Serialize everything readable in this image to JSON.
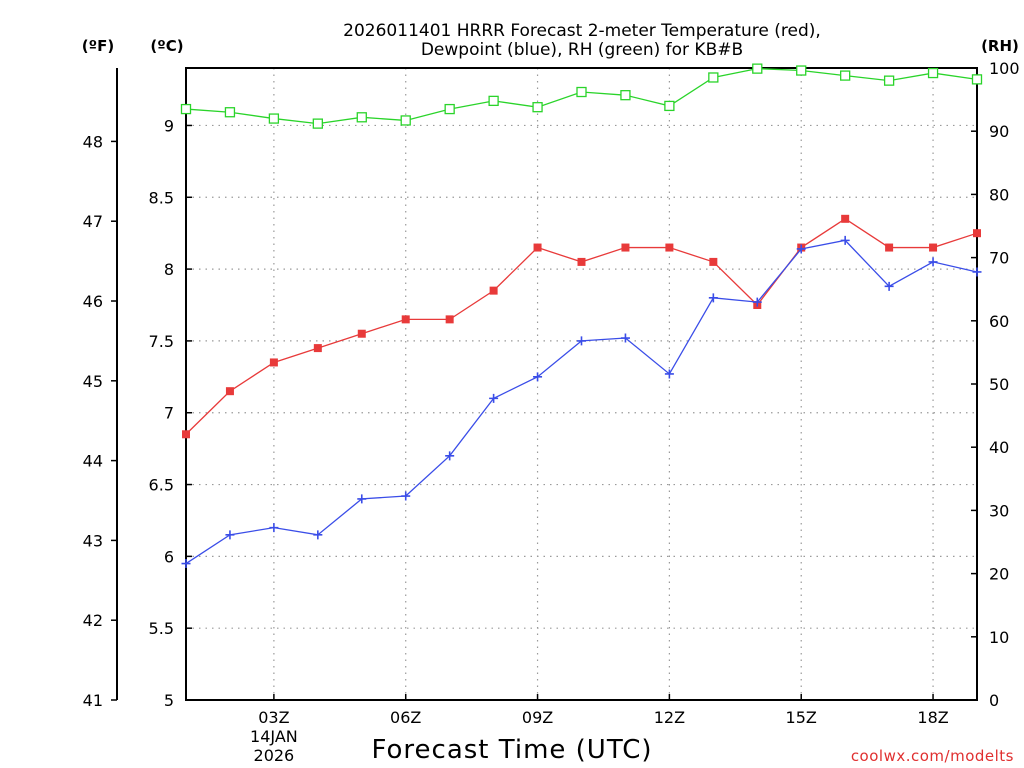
{
  "chart_data": {
    "type": "line",
    "title_line1": "2026011401 HRRR Forecast 2-meter Temperature (red),",
    "title_line2": "Dewpoint (blue), RH (green) for KB#B",
    "xlabel": "Forecast Time (UTC)",
    "credit": "coolwx.com/modelts",
    "units": {
      "fahrenheit": "(ºF)",
      "celsius": "(ºC)",
      "rh": "(RH)"
    },
    "x_hours": [
      1,
      2,
      3,
      4,
      5,
      6,
      7,
      8,
      9,
      10,
      11,
      12,
      13,
      14,
      15,
      16,
      17,
      18,
      19
    ],
    "x_ticks": [
      {
        "hour": 3,
        "label": "03Z",
        "sub1": "14JAN",
        "sub2": "2026"
      },
      {
        "hour": 6,
        "label": "06Z"
      },
      {
        "hour": 9,
        "label": "09Z"
      },
      {
        "hour": 12,
        "label": "12Z"
      },
      {
        "hour": 15,
        "label": "15Z"
      },
      {
        "hour": 18,
        "label": "18Z"
      }
    ],
    "xlim": [
      1,
      19
    ],
    "celsius_axis": {
      "ylim": [
        5,
        9.4
      ],
      "ticks": [
        "5",
        "5.5",
        "6",
        "6.5",
        "7",
        "7.5",
        "8",
        "8.5",
        "9"
      ]
    },
    "fahrenheit_axis": {
      "ylim": [
        41,
        48.92
      ],
      "ticks": [
        "41",
        "42",
        "43",
        "44",
        "45",
        "46",
        "47",
        "48"
      ]
    },
    "rh_axis": {
      "ylim": [
        0,
        100
      ],
      "ticks": [
        "0",
        "10",
        "20",
        "30",
        "40",
        "50",
        "60",
        "70",
        "80",
        "90",
        "100"
      ]
    },
    "series": [
      {
        "name": "Temperature",
        "axis": "celsius",
        "color": "#e83a3a",
        "marker": "filled-square",
        "values": [
          6.85,
          7.15,
          7.35,
          7.45,
          7.55,
          7.65,
          7.65,
          7.85,
          8.15,
          8.05,
          8.15,
          8.15,
          8.05,
          7.75,
          8.15,
          8.35,
          8.15,
          8.15,
          8.25
        ]
      },
      {
        "name": "Dewpoint",
        "axis": "celsius",
        "color": "#3a4de8",
        "marker": "plus",
        "values": [
          5.95,
          6.15,
          6.2,
          6.15,
          6.4,
          6.42,
          6.7,
          7.1,
          7.25,
          7.5,
          7.52,
          7.27,
          7.8,
          7.77,
          8.14,
          8.2,
          7.88,
          8.05,
          7.98
        ]
      },
      {
        "name": "RH",
        "axis": "rh",
        "color": "#2ad42a",
        "marker": "open-square",
        "values": [
          93.5,
          93,
          92,
          91.2,
          92.2,
          91.7,
          93.5,
          94.8,
          93.8,
          96.2,
          95.7,
          94,
          98.5,
          99.9,
          99.6,
          98.8,
          98,
          99.2,
          98.2
        ]
      }
    ]
  }
}
